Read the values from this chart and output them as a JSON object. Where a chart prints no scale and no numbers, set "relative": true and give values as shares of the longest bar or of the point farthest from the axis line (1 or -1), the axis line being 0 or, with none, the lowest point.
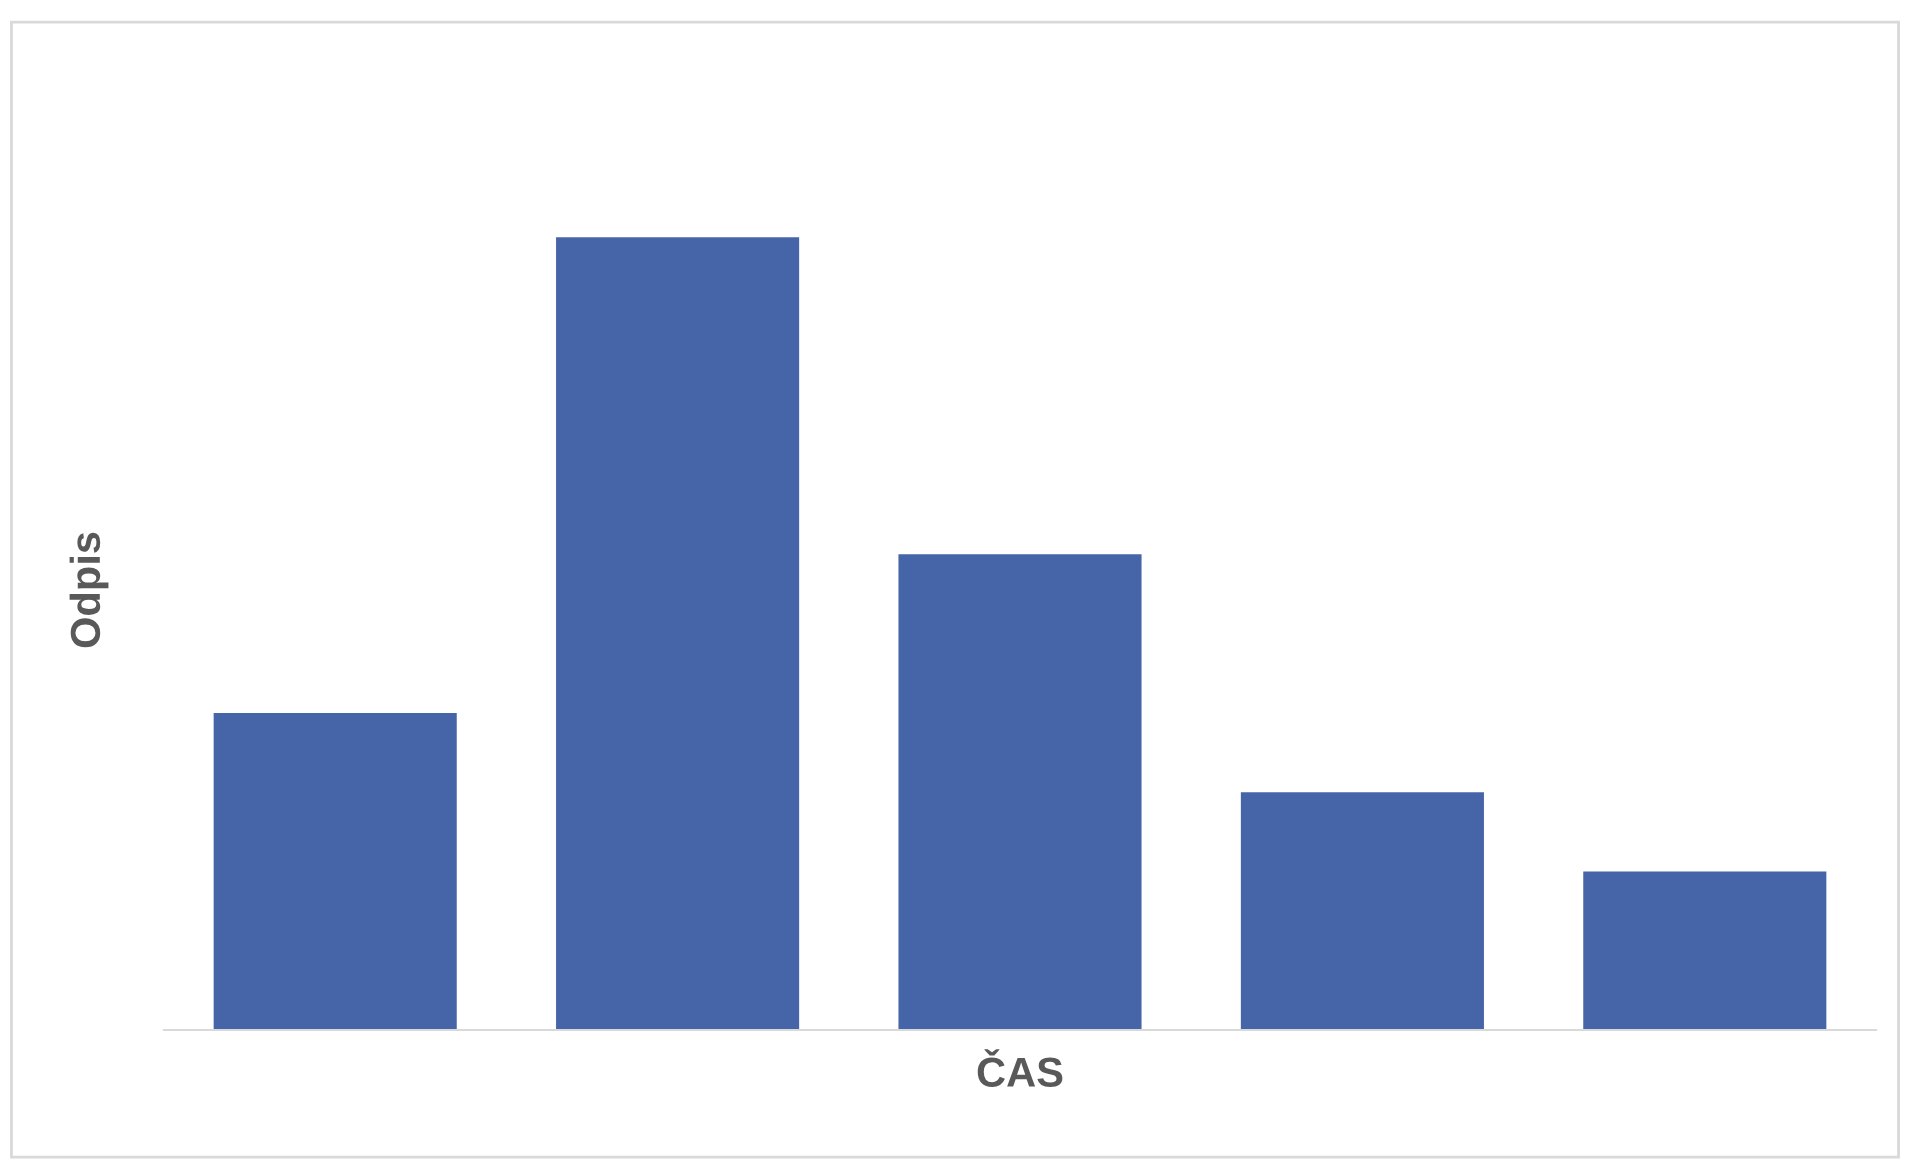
{
  "chart_data": {
    "type": "bar",
    "relative": true,
    "xlabel": "ČAS",
    "ylabel": "Odpis",
    "categories": [
      null,
      null,
      null,
      null,
      null
    ],
    "values": [
      0.4,
      1.0,
      0.6,
      0.3,
      0.2
    ],
    "color": "#4565a8",
    "grid": false,
    "legend": false
  }
}
